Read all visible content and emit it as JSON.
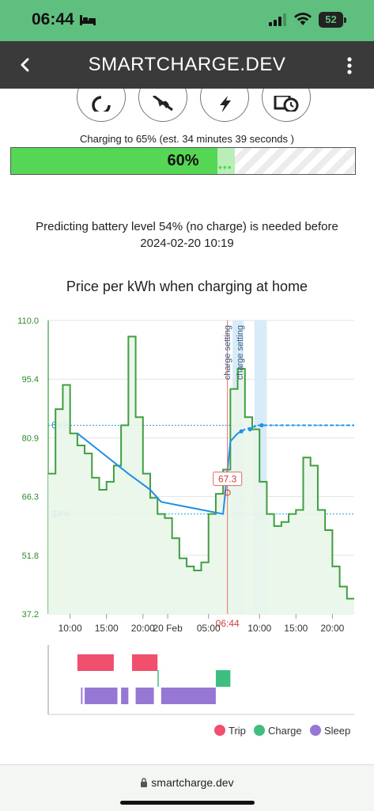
{
  "status": {
    "time": "06:44",
    "battery": "52"
  },
  "app": {
    "title": "SMARTCHARGE.DEV"
  },
  "actions": [
    {
      "name": "refresh-icon"
    },
    {
      "name": "fan-icon"
    },
    {
      "name": "lightning-icon"
    },
    {
      "name": "schedule-icon"
    }
  ],
  "charging": {
    "text": "Charging to 65% (est. 34 minutes 39 seconds )",
    "level_label": "60%",
    "current": 0.6,
    "target": 0.65
  },
  "prediction": {
    "line1": "Predicting battery level 54% (no charge) is needed before",
    "line2": "2024-02-20 10:19"
  },
  "chart_data": {
    "type": "line",
    "title": "Price per kWh when charging at home",
    "ylim": [
      37.2,
      110.0
    ],
    "yticks": [
      "110.0",
      "95.4",
      "80.9",
      "66.3",
      "51.8",
      "37.2"
    ],
    "xticks": [
      "10:00",
      "15:00",
      "20:00",
      "20 Feb",
      "05:00",
      "10:00",
      "15:00",
      "20:00"
    ],
    "now_label": "06:44",
    "now_value": "67.3",
    "setting_labels": [
      "charge setting",
      "charge setting"
    ],
    "threshold_high": "65%",
    "threshold_low": "34%",
    "price_series": [
      [
        1.0,
        72
      ],
      [
        2.0,
        88
      ],
      [
        3.0,
        94
      ],
      [
        4.0,
        82
      ],
      [
        5.0,
        79
      ],
      [
        6.0,
        77
      ],
      [
        7.0,
        71
      ],
      [
        8.0,
        68
      ],
      [
        9.0,
        70
      ],
      [
        10.0,
        74
      ],
      [
        11.0,
        84
      ],
      [
        12.0,
        106
      ],
      [
        13.0,
        86
      ],
      [
        14.0,
        72
      ],
      [
        15.0,
        66
      ],
      [
        16.0,
        62
      ],
      [
        17.0,
        61
      ],
      [
        18.0,
        56
      ],
      [
        19.0,
        51
      ],
      [
        20.0,
        49
      ],
      [
        21.0,
        48
      ],
      [
        22.0,
        50
      ],
      [
        23.0,
        62
      ],
      [
        24.0,
        67
      ],
      [
        25.0,
        73
      ],
      [
        26.0,
        93
      ],
      [
        27.0,
        98
      ],
      [
        28.0,
        86
      ],
      [
        29.0,
        83
      ],
      [
        30.0,
        70
      ],
      [
        31.0,
        62
      ],
      [
        32.0,
        59
      ],
      [
        33.0,
        60
      ],
      [
        34.0,
        62
      ],
      [
        35.0,
        63
      ],
      [
        36.0,
        76
      ],
      [
        37.0,
        74
      ],
      [
        38.0,
        63
      ],
      [
        39.0,
        58
      ],
      [
        40.0,
        49
      ],
      [
        41.0,
        44
      ],
      [
        42.0,
        41
      ]
    ],
    "battery_series": [
      [
        4.0,
        82
      ],
      [
        11.0,
        72
      ],
      [
        14.0,
        68
      ],
      [
        15.5,
        65
      ],
      [
        24.0,
        62
      ],
      [
        25.0,
        80
      ],
      [
        26.0,
        82
      ]
    ],
    "battery_forecast": [
      [
        26.0,
        82
      ],
      [
        27.0,
        83
      ],
      [
        29.0,
        84
      ],
      [
        42.0,
        84
      ]
    ],
    "timeline": {
      "trip": [
        [
          4.0,
          9.0
        ],
        [
          11.5,
          15.0
        ]
      ],
      "charge": [
        [
          15.0,
          15.1
        ],
        [
          23.0,
          25.0
        ]
      ],
      "sleep": [
        [
          4.5,
          4.7
        ],
        [
          5.0,
          9.5
        ],
        [
          10.0,
          11.0
        ],
        [
          12.0,
          14.5
        ],
        [
          15.5,
          23.0
        ]
      ]
    }
  },
  "legend": {
    "items": [
      {
        "label": "Trip",
        "color": "#f0506e"
      },
      {
        "label": "Charge",
        "color": "#3fbf7f"
      },
      {
        "label": "Sleep",
        "color": "#9677d4"
      }
    ]
  },
  "browser": {
    "url": "smartcharge.dev"
  }
}
